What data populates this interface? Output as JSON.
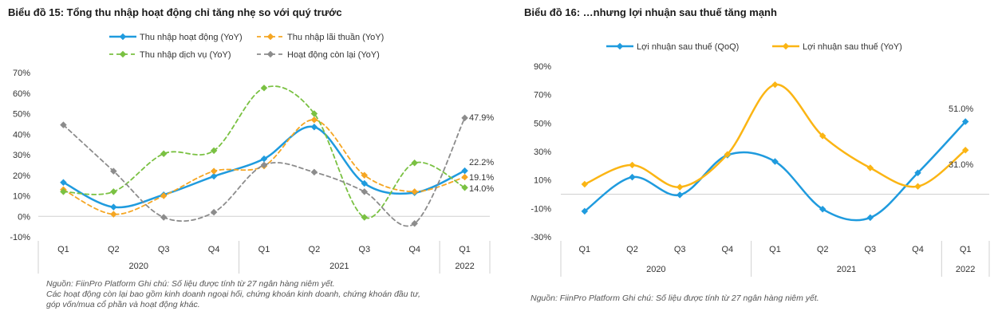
{
  "chart_data": [
    {
      "type": "line",
      "title": "Biểu đồ 15: Tổng thu nhập hoạt động chỉ tăng nhẹ so với quý trước",
      "categories": [
        "Q1",
        "Q2",
        "Q3",
        "Q4",
        "Q1",
        "Q2",
        "Q3",
        "Q4",
        "Q1"
      ],
      "years": [
        {
          "label": "2020",
          "from": 0,
          "to": 3
        },
        {
          "label": "2021",
          "from": 4,
          "to": 7
        },
        {
          "label": "2022",
          "from": 8,
          "to": 8
        }
      ],
      "yticks": [
        "70%",
        "60%",
        "50%",
        "40%",
        "30%",
        "20%",
        "10%",
        "0%",
        "-10%"
      ],
      "ytick_values": [
        70,
        60,
        50,
        40,
        30,
        20,
        10,
        0,
        -10
      ],
      "ylim": [
        -10,
        70
      ],
      "series": [
        {
          "name": "Thu nhập hoạt động (YoY)",
          "color": "#1f9bde",
          "dash": "",
          "width": 2.5,
          "values": [
            16.5,
            4.5,
            10.5,
            19.5,
            28,
            43.5,
            16,
            11.5,
            22.2
          ]
        },
        {
          "name": "Thu nhập lãi thuần (YoY)",
          "color": "#f5a623",
          "dash": "5,4",
          "width": 1.8,
          "values": [
            13,
            1,
            10,
            22,
            24.5,
            47,
            20,
            12,
            19.1
          ]
        },
        {
          "name": "Thu nhập dịch vụ (YoY)",
          "color": "#7ac142",
          "dash": "5,4",
          "width": 1.8,
          "values": [
            12,
            12,
            30.5,
            32,
            62.5,
            50,
            -0.5,
            26,
            14.0
          ]
        },
        {
          "name": "Hoạt động còn lại (YoY)",
          "color": "#8c8c8c",
          "dash": "5,4",
          "width": 1.8,
          "values": [
            44.5,
            22,
            -0.5,
            2,
            25,
            21.5,
            12,
            -3.5,
            47.9
          ]
        }
      ],
      "end_labels": [
        "47.9%",
        "22.2%",
        "19.1%",
        "14.0%"
      ]
    },
    {
      "type": "line",
      "title": "Biểu đồ 16: …nhưng lợi nhuận sau thuế tăng mạnh",
      "categories": [
        "Q1",
        "Q2",
        "Q3",
        "Q4",
        "Q1",
        "Q2",
        "Q3",
        "Q4",
        "Q1"
      ],
      "years": [
        {
          "label": "2020",
          "from": 0,
          "to": 3
        },
        {
          "label": "2021",
          "from": 4,
          "to": 7
        },
        {
          "label": "2022",
          "from": 8,
          "to": 8
        }
      ],
      "yticks": [
        "90%",
        "70%",
        "50%",
        "30%",
        "10%",
        "-10%",
        "-30%"
      ],
      "ytick_values": [
        90,
        70,
        50,
        30,
        10,
        -10,
        -30
      ],
      "ylim": [
        -30,
        90
      ],
      "series": [
        {
          "name": "Lợi nhuận sau thuế (QoQ)",
          "color": "#1f9bde",
          "dash": "",
          "width": 2.5,
          "values": [
            -12,
            12,
            -0.5,
            27.5,
            23,
            -10.5,
            -16.5,
            15,
            51.0
          ]
        },
        {
          "name": "Lợi nhuận sau thuế (YoY)",
          "color": "#fbb514",
          "dash": "",
          "width": 2.5,
          "values": [
            7,
            20.5,
            5,
            28,
            77,
            41,
            18.5,
            5.5,
            31.0
          ]
        }
      ],
      "end_labels": [
        "51.0%",
        "31.0%"
      ]
    }
  ],
  "notes": {
    "left_line1": "Nguồn: FiinPro Platform Ghi chú: Số liệu được tính từ 27 ngân hàng niêm yết.",
    "left_line2": "Các hoạt động còn lại bao gồm kinh doanh ngoại hối, chứng khoán kinh doanh, chứng khoán đầu tư,",
    "left_line3": "góp vốn/mua cổ phần và hoạt động khác.",
    "right": "Nguồn: FiinPro Platform Ghi chú: Số liệu được tính từ 27 ngân hàng niêm yết."
  }
}
